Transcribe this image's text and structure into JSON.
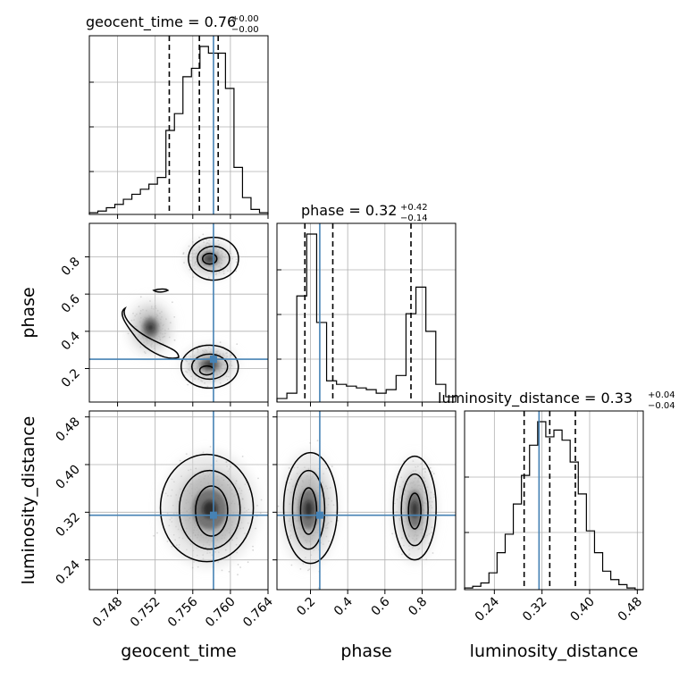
{
  "chart_data": {
    "type": "corner",
    "parameters": [
      "geocent_time",
      "phase",
      "luminosity_distance"
    ],
    "truth": {
      "geocent_time": 0.7582,
      "phase": 0.25,
      "luminosity_distance": 0.315
    },
    "titles": [
      {
        "param": "geocent_time",
        "median": "0.76",
        "plus": "+0.00",
        "minus": "−0.00"
      },
      {
        "param": "phase",
        "median": "0.32",
        "plus": "+0.42",
        "minus": "−0.14"
      },
      {
        "param": "luminosity_distance",
        "median": "0.33",
        "plus": "+0.04",
        "minus": "−0.04"
      }
    ],
    "axes": {
      "geocent_time": {
        "range": [
          0.745,
          0.764
        ],
        "ticks": [
          0.748,
          0.752,
          0.756,
          0.76,
          0.764
        ],
        "tick_labels": [
          "0.748",
          "0.752",
          "0.756",
          "0.760",
          "0.764"
        ]
      },
      "phase": {
        "range": [
          0.02,
          0.98
        ],
        "ticks": [
          0.2,
          0.4,
          0.6,
          0.8
        ],
        "tick_labels": [
          "0.2",
          "0.4",
          "0.6",
          "0.8"
        ]
      },
      "luminosity_distance": {
        "range": [
          0.19,
          0.49
        ],
        "ticks": [
          0.24,
          0.32,
          0.4,
          0.48
        ],
        "tick_labels": [
          "0.24",
          "0.32",
          "0.40",
          "0.48"
        ]
      }
    },
    "histograms": [
      {
        "param": "geocent_time",
        "quantiles": [
          0.7535,
          0.7567,
          0.7587
        ],
        "counts": [
          1,
          2,
          4,
          6,
          9,
          12,
          15,
          18,
          22,
          50,
          60,
          82,
          87,
          100,
          96,
          96,
          75,
          28,
          10,
          3,
          1
        ]
      },
      {
        "param": "phase",
        "quantiles": [
          0.17,
          0.32,
          0.74
        ],
        "counts": [
          2,
          5,
          60,
          95,
          45,
          12,
          10,
          9,
          8,
          7,
          5,
          7,
          15,
          50,
          65,
          40,
          10,
          3
        ]
      },
      {
        "param": "luminosity_distance",
        "quantiles": [
          0.29,
          0.333,
          0.376
        ],
        "counts": [
          1,
          2,
          4,
          10,
          22,
          33,
          51,
          68,
          86,
          100,
          91,
          95,
          89,
          76,
          57,
          35,
          22,
          11,
          6,
          3,
          1,
          0
        ]
      }
    ],
    "grid": true
  }
}
